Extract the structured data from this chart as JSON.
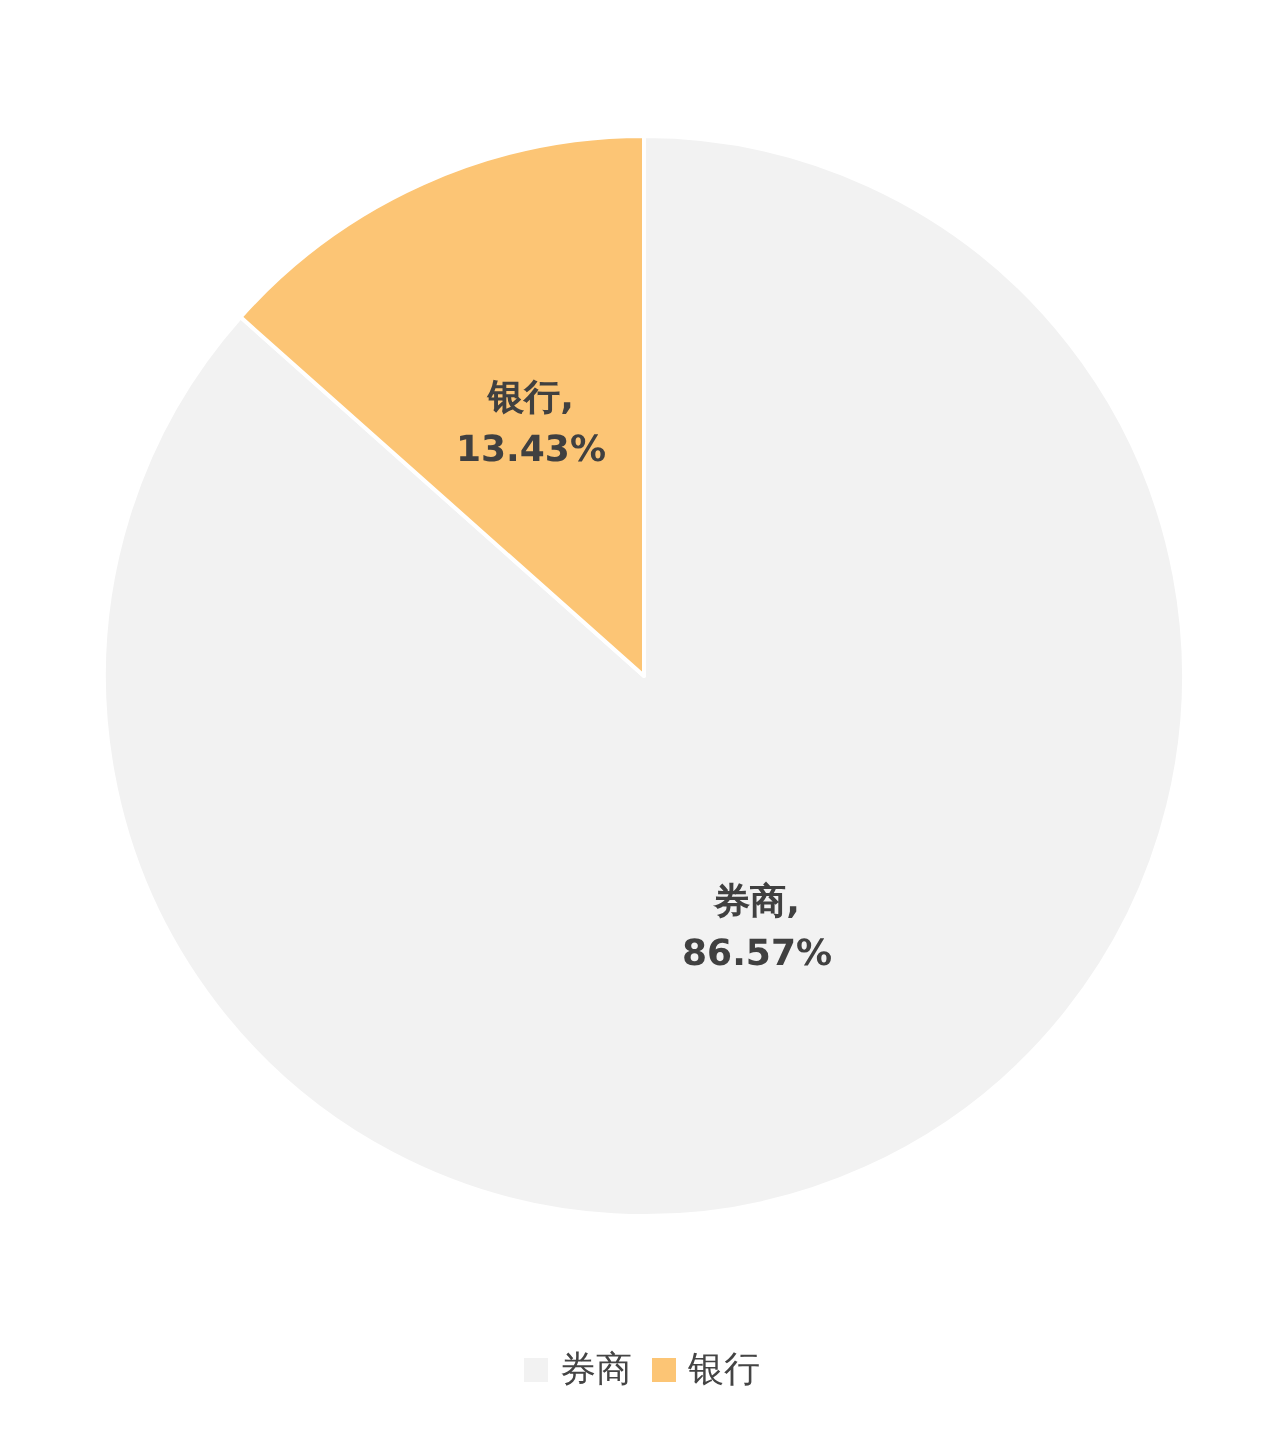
{
  "chart_data": {
    "type": "pie",
    "categories": [
      "券商",
      "银行"
    ],
    "values": [
      86.57,
      13.43
    ],
    "colors": [
      "#f2f2f2",
      "#fcc575"
    ],
    "value_labels": [
      "券商,\n86.57%",
      "银行,\n13.43%"
    ],
    "legend": "bottom"
  }
}
